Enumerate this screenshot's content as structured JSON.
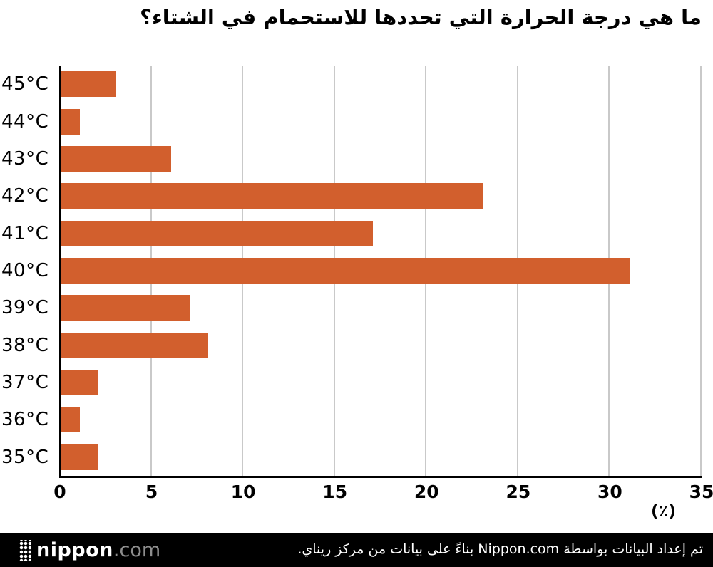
{
  "title": "ما هي درجة الحرارة التي تحددها للاستحمام في الشتاء؟",
  "chart_data": {
    "type": "bar",
    "orientation": "horizontal",
    "title": "ما هي درجة الحرارة التي تحددها للاستحمام في الشتاء؟",
    "categories": [
      "45°C",
      "44°C",
      "43°C",
      "42°C",
      "41°C",
      "40°C",
      "39°C",
      "38°C",
      "37°C",
      "36°C",
      "35°C"
    ],
    "values": [
      3,
      1,
      6,
      23,
      17,
      31,
      7,
      8,
      2,
      1,
      2
    ],
    "xlim": [
      0,
      35
    ],
    "x_ticks": [
      0,
      5,
      10,
      15,
      20,
      25,
      30,
      35
    ],
    "x_unit_label": "(٪)",
    "xlabel": "",
    "ylabel": "",
    "grid": true,
    "legend": "none",
    "bar_color": "#d25f2d",
    "gridline_color": "#c9c9c9",
    "axis_color": "#000000"
  },
  "footer": {
    "logo_name": "nippon",
    "logo_tld": ".com",
    "attribution": "تم إعداد البيانات بواسطة Nippon.com بناءً على بيانات من مركز ريناي.",
    "background": "#000000"
  }
}
